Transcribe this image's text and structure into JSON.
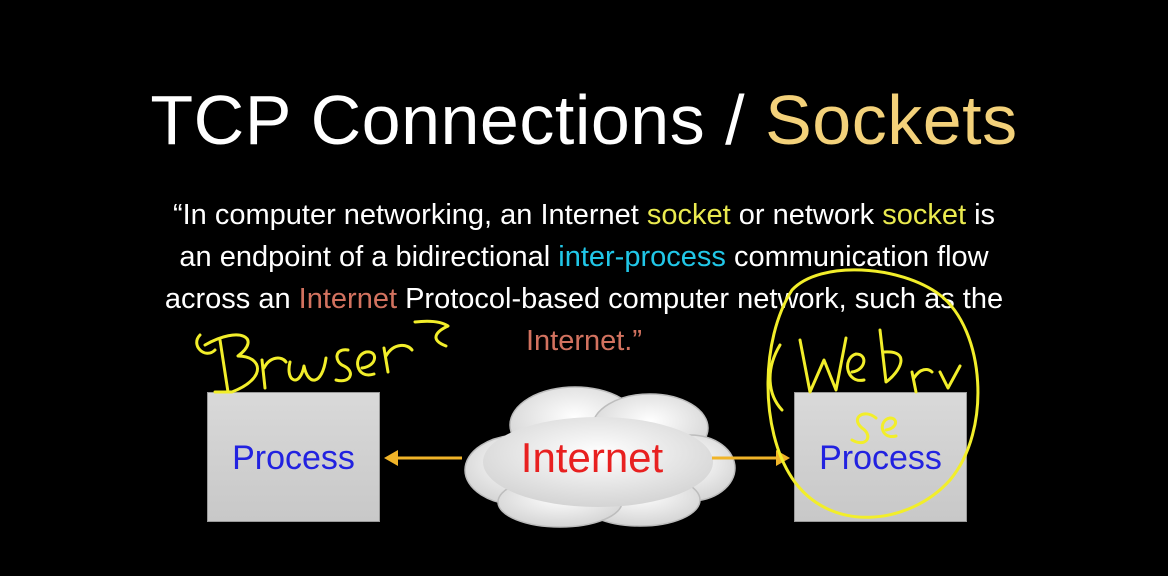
{
  "slide": {
    "title_main": "TCP Connections /",
    "title_accent": "Sockets",
    "quote": {
      "line1_a": "“In computer networking, an Internet ",
      "line1_b": "socket",
      "line1_c": " or network ",
      "line1_d": "socket",
      "line1_e": " is",
      "line2_a": "an endpoint of a bidirectional ",
      "line2_b": "inter-process",
      "line2_c": " communication flow",
      "line3_a": "across an ",
      "line3_b": "Internet",
      "line3_c": " Protocol-based computer network, such as the",
      "line4": "Internet.”"
    }
  },
  "diagram": {
    "left_process": "Process",
    "right_process": "Process",
    "cloud_label": "Internet"
  },
  "colors": {
    "background": "#000000",
    "title_accent": "#f3d17a",
    "socket_highlight": "#eaea4f",
    "ipc_highlight": "#21c7e8",
    "internet_highlight": "#d2725f",
    "process_text": "#2222e0",
    "internet_label": "#e82020",
    "arrow": "#f0b429",
    "handwriting": "#f2ee2a"
  },
  "annotations": {
    "left_handwriting": "Browser",
    "right_handwriting": "Web Server"
  }
}
